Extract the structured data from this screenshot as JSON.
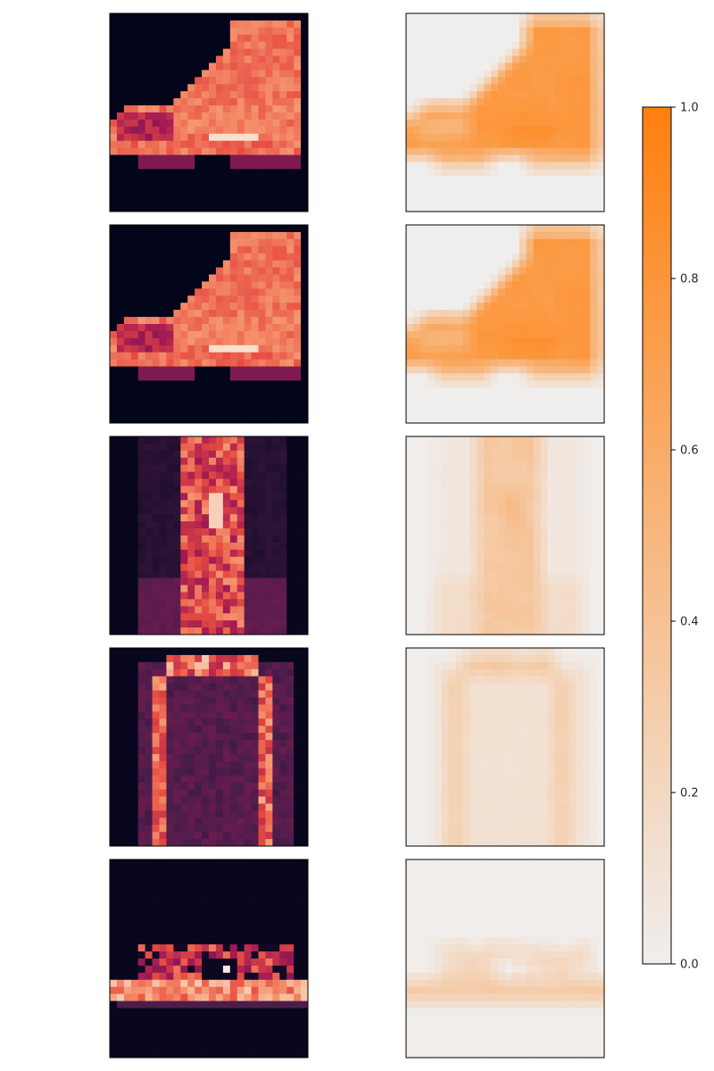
{
  "chart_data": {
    "type": "heatmap",
    "layout": "5 rows x 2 columns of image panels with a shared colorbar",
    "grid": false,
    "rows": [
      {
        "input": "ankle boot",
        "heatmap": "ankle boot"
      },
      {
        "input": "ankle boot",
        "heatmap": "ankle boot"
      },
      {
        "input": "trouser",
        "heatmap": "trouser"
      },
      {
        "input": "coat",
        "heatmap": "pullover"
      },
      {
        "input": "sandal",
        "heatmap": "sneaker"
      }
    ],
    "left_column_colormap": "rocket",
    "right_column_colormap": "white to orange",
    "colorbar": {
      "min": 0.0,
      "max": 1.0,
      "ticks": [
        0.0,
        0.2,
        0.4,
        0.6,
        0.8,
        1.0
      ],
      "tick_labels": [
        "0.0",
        "0.2",
        "0.4",
        "0.6",
        "0.8",
        "1.0"
      ],
      "color_low": "#f0eeed",
      "color_high": "#ff7f0e"
    }
  }
}
